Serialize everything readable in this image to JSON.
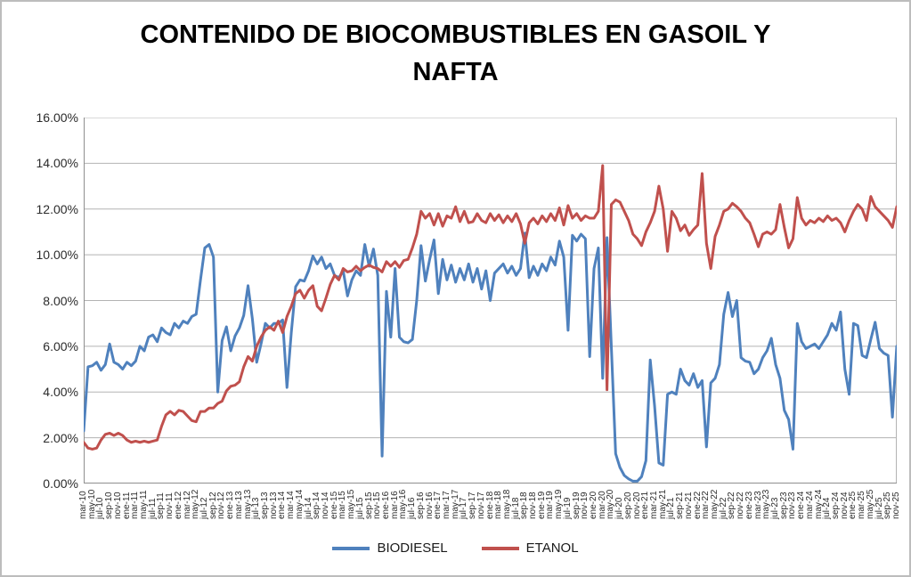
{
  "title": {
    "line1": "CONTENIDO DE BIOCOMBUSTIBLES EN GASOIL Y",
    "line2": "NAFTA"
  },
  "colors": {
    "background": "#ffffff",
    "frame_border": "#bdbdbd",
    "gridline": "#b3b3b3",
    "axis_line": "#8f8f8f",
    "label_text": "#2b2b2b",
    "biodiesel": "#4F81BD",
    "etanol": "#C0504D"
  },
  "chart_data": {
    "type": "line",
    "title": "CONTENIDO DE BIOCOMBUSTIBLES EN GASOIL Y NAFTA",
    "xlabel": "",
    "ylabel": "",
    "ylim": [
      0,
      16
    ],
    "y_unit": "%",
    "y_ticks": [
      "0.00%",
      "2.00%",
      "4.00%",
      "6.00%",
      "8.00%",
      "10.00%",
      "12.00%",
      "14.00%",
      "16.00%"
    ],
    "x_tick_every": 2,
    "grid": "horizontal",
    "legend_position": "bottom",
    "categories": [
      "mar-10",
      "abr-10",
      "may-10",
      "jun-10",
      "jul-10",
      "ago-10",
      "sep-10",
      "oct-10",
      "nov-10",
      "dic-10",
      "ene-11",
      "feb-11",
      "mar-11",
      "abr-11",
      "may-11",
      "jun-11",
      "jul-11",
      "ago-11",
      "sep-11",
      "oct-11",
      "nov-11",
      "dic-11",
      "ene-12",
      "feb-12",
      "mar-12",
      "abr-12",
      "may-12",
      "jun-12",
      "jul-12",
      "ago-12",
      "sep-12",
      "oct-12",
      "nov-12",
      "dic-12",
      "ene-13",
      "feb-13",
      "mar-13",
      "abr-13",
      "may-13",
      "jun-13",
      "jul-13",
      "ago-13",
      "sep-13",
      "oct-13",
      "nov-13",
      "dic-13",
      "ene-14",
      "feb-14",
      "mar-14",
      "abr-14",
      "may-14",
      "jun-14",
      "jul-14",
      "ago-14",
      "sep-14",
      "oct-14",
      "nov-14",
      "dic-14",
      "ene-15",
      "feb-15",
      "mar-15",
      "abr-15",
      "may-15",
      "jun-15",
      "jul-15",
      "ago-15",
      "sep-15",
      "oct-15",
      "nov-15",
      "dic-15",
      "ene-16",
      "feb-16",
      "mar-16",
      "abr-16",
      "may-16",
      "jun-16",
      "jul-16",
      "ago-16",
      "sep-16",
      "oct-16",
      "nov-16",
      "dic-16",
      "ene-17",
      "feb-17",
      "mar-17",
      "abr-17",
      "may-17",
      "jun-17",
      "jul-17",
      "ago-17",
      "sep-17",
      "oct-17",
      "nov-17",
      "dic-17",
      "ene-18",
      "feb-18",
      "mar-18",
      "abr-18",
      "may-18",
      "jun-18",
      "jul-18",
      "ago-18",
      "sep-18",
      "oct-18",
      "nov-18",
      "dic-18",
      "ene-19",
      "feb-19",
      "mar-19",
      "abr-19",
      "may-19",
      "jun-19",
      "jul-19",
      "ago-19",
      "sep-19",
      "oct-19",
      "nov-19",
      "dic-19",
      "ene-20",
      "feb-20",
      "mar-20",
      "abr-20",
      "may-20",
      "jun-20",
      "jul-20",
      "ago-20",
      "sep-20",
      "oct-20",
      "nov-20",
      "dic-20",
      "ene-21",
      "feb-21",
      "mar-21",
      "abr-21",
      "may-21",
      "jun-21",
      "jul-21",
      "ago-21",
      "sep-21",
      "oct-21",
      "nov-21",
      "dic-21",
      "ene-22",
      "feb-22",
      "mar-22",
      "abr-22",
      "may-22",
      "jun-22",
      "jul-22",
      "ago-22",
      "sep-22",
      "oct-22",
      "nov-22",
      "dic-22",
      "ene-23",
      "feb-23",
      "mar-23",
      "abr-23",
      "may-23",
      "jun-23",
      "jul-23",
      "ago-23",
      "sep-23",
      "oct-23",
      "nov-23",
      "dic-23",
      "ene-24",
      "feb-24",
      "mar-24",
      "abr-24",
      "may-24",
      "jun-24",
      "jul-24",
      "ago-24",
      "sep-24",
      "oct-24",
      "nov-24",
      "dic-24",
      "ene-25",
      "feb-25",
      "mar-25",
      "abr-25",
      "may-25",
      "jun-25",
      "jul-25",
      "ago-25",
      "sep-25",
      "oct-25",
      "nov-25"
    ],
    "series": [
      {
        "name": "BIODIESEL",
        "color": "#4F81BD",
        "values": [
          2.3,
          5.1,
          5.15,
          5.3,
          4.95,
          5.2,
          6.1,
          5.3,
          5.2,
          5.0,
          5.3,
          5.15,
          5.35,
          6.0,
          5.8,
          6.4,
          6.5,
          6.2,
          6.8,
          6.6,
          6.5,
          7.0,
          6.8,
          7.1,
          7.0,
          7.3,
          7.4,
          8.9,
          10.3,
          10.45,
          9.9,
          4.0,
          6.25,
          6.85,
          5.8,
          6.45,
          6.8,
          7.35,
          8.65,
          7.2,
          5.3,
          6.1,
          7.0,
          6.8,
          7.0,
          7.0,
          7.15,
          4.2,
          6.6,
          8.6,
          8.9,
          8.85,
          9.3,
          9.95,
          9.6,
          9.9,
          9.4,
          9.6,
          9.1,
          9.0,
          9.3,
          8.2,
          8.9,
          9.3,
          9.1,
          10.45,
          9.5,
          10.25,
          9.1,
          1.2,
          8.4,
          6.4,
          9.4,
          6.4,
          6.2,
          6.15,
          6.3,
          8.0,
          10.4,
          8.85,
          9.8,
          10.65,
          8.3,
          9.8,
          8.9,
          9.55,
          8.8,
          9.4,
          8.9,
          9.6,
          8.8,
          9.4,
          8.5,
          9.3,
          8.0,
          9.2,
          9.4,
          9.6,
          9.2,
          9.5,
          9.1,
          9.4,
          10.95,
          9.0,
          9.5,
          9.1,
          9.6,
          9.3,
          9.9,
          9.55,
          10.6,
          9.9,
          6.7,
          10.85,
          10.6,
          10.9,
          10.7,
          5.55,
          9.4,
          10.3,
          4.6,
          10.75,
          6.0,
          1.3,
          0.7,
          0.35,
          0.2,
          0.1,
          0.1,
          0.3,
          1.0,
          5.4,
          3.4,
          0.9,
          0.8,
          3.9,
          4.0,
          3.9,
          5.0,
          4.5,
          4.3,
          4.8,
          4.2,
          4.5,
          1.6,
          4.4,
          4.6,
          5.2,
          7.4,
          8.35,
          7.3,
          8.0,
          5.5,
          5.35,
          5.3,
          4.8,
          5.0,
          5.5,
          5.8,
          6.35,
          5.2,
          4.6,
          3.2,
          2.8,
          1.5,
          7.0,
          6.2,
          5.9,
          6.0,
          6.1,
          5.9,
          6.2,
          6.5,
          7.0,
          6.7,
          7.5,
          5.0,
          3.9,
          7.0,
          6.9,
          5.6,
          5.5,
          6.3,
          7.05,
          5.9,
          5.7,
          5.6,
          2.9,
          6.0
        ]
      },
      {
        "name": "ETANOL",
        "color": "#C0504D",
        "values": [
          1.8,
          1.55,
          1.5,
          1.55,
          1.9,
          2.15,
          2.2,
          2.1,
          2.2,
          2.1,
          1.9,
          1.8,
          1.85,
          1.8,
          1.85,
          1.8,
          1.85,
          1.9,
          2.5,
          3.0,
          3.15,
          3.0,
          3.2,
          3.15,
          2.95,
          2.75,
          2.7,
          3.15,
          3.15,
          3.3,
          3.3,
          3.5,
          3.6,
          4.05,
          4.25,
          4.3,
          4.45,
          5.1,
          5.55,
          5.35,
          6.0,
          6.4,
          6.7,
          6.85,
          6.7,
          7.1,
          6.6,
          7.3,
          7.75,
          8.3,
          8.45,
          8.1,
          8.45,
          8.65,
          7.75,
          7.55,
          8.1,
          8.7,
          9.1,
          8.9,
          9.4,
          9.25,
          9.3,
          9.5,
          9.3,
          9.45,
          9.55,
          9.45,
          9.4,
          9.25,
          9.7,
          9.5,
          9.7,
          9.45,
          9.75,
          9.8,
          10.3,
          10.9,
          11.9,
          11.6,
          11.8,
          11.3,
          11.8,
          11.25,
          11.7,
          11.6,
          12.1,
          11.45,
          11.9,
          11.4,
          11.45,
          11.8,
          11.5,
          11.4,
          11.8,
          11.5,
          11.75,
          11.4,
          11.7,
          11.45,
          11.8,
          11.35,
          10.5,
          11.4,
          11.6,
          11.35,
          11.7,
          11.45,
          11.8,
          11.5,
          12.05,
          11.3,
          12.15,
          11.6,
          11.8,
          11.5,
          11.7,
          11.6,
          11.6,
          11.9,
          13.9,
          4.1,
          12.2,
          12.4,
          12.3,
          11.9,
          11.5,
          10.9,
          10.7,
          10.4,
          11.0,
          11.4,
          11.9,
          13.0,
          12.0,
          10.15,
          11.9,
          11.6,
          11.05,
          11.3,
          10.85,
          11.1,
          11.3,
          13.55,
          10.5,
          9.4,
          10.8,
          11.3,
          11.9,
          12.0,
          12.25,
          12.1,
          11.9,
          11.6,
          11.4,
          10.9,
          10.35,
          10.9,
          11.0,
          10.9,
          11.1,
          12.2,
          11.2,
          10.3,
          10.7,
          12.5,
          11.6,
          11.3,
          11.5,
          11.4,
          11.6,
          11.45,
          11.7,
          11.5,
          11.6,
          11.4,
          11.0,
          11.5,
          11.9,
          12.2,
          12.0,
          11.5,
          12.55,
          12.1,
          11.9,
          11.7,
          11.5,
          11.2,
          12.1
        ]
      }
    ]
  }
}
